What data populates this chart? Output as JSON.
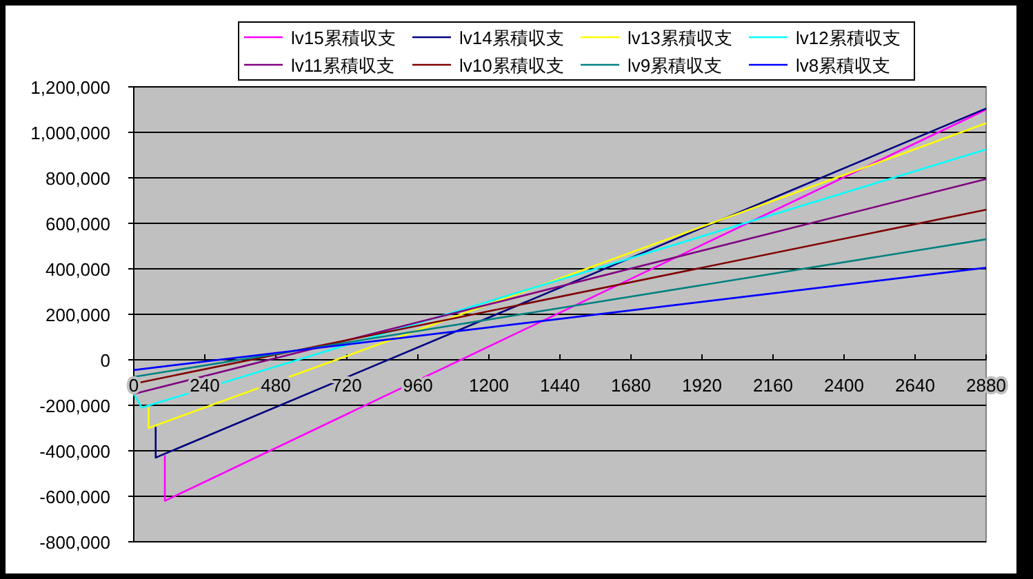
{
  "chart_data": {
    "type": "line",
    "legend": "top",
    "grid": "y",
    "line_style": "solid",
    "xlim": [
      0,
      2880
    ],
    "xticks": [
      0,
      240,
      480,
      720,
      960,
      1200,
      1440,
      1680,
      1920,
      2160,
      2400,
      2640,
      2880
    ],
    "ylim": [
      -800000,
      1200000
    ],
    "yticks": [
      {
        "value": -800000,
        "label": "-800,000"
      },
      {
        "value": -600000,
        "label": "-600,000"
      },
      {
        "value": -400000,
        "label": "-400,000"
      },
      {
        "value": -200000,
        "label": "-200,000"
      },
      {
        "value": 0,
        "label": "0"
      },
      {
        "value": 200000,
        "label": "200,000"
      },
      {
        "value": 400000,
        "label": "400,000"
      },
      {
        "value": 600000,
        "label": "600,000"
      },
      {
        "value": 800000,
        "label": "800,000"
      },
      {
        "value": 1000000,
        "label": "1,000,000"
      },
      {
        "value": 1200000,
        "label": "1,200,000"
      }
    ],
    "series": [
      {
        "name": "lv15累積収支",
        "color": "#ff00ff",
        "x": [
          105,
          105,
          2880
        ],
        "values": [
          -420000,
          -620000,
          1100000
        ]
      },
      {
        "name": "lv14累積収支",
        "color": "#000080",
        "x": [
          74,
          74,
          2880
        ],
        "values": [
          -295000,
          -430000,
          1105000
        ]
      },
      {
        "name": "lv13累積収支",
        "color": "#ffff00",
        "x": [
          50,
          50,
          2880
        ],
        "values": [
          -210000,
          -300000,
          1040000
        ]
      },
      {
        "name": "lv12累積収支",
        "color": "#00ffff",
        "x": [
          0,
          27,
          2880
        ],
        "values": [
          -150000,
          -210000,
          925000
        ]
      },
      {
        "name": "lv11累積収支",
        "color": "#800080",
        "x": [
          0,
          2880
        ],
        "values": [
          -150000,
          795000
        ]
      },
      {
        "name": "lv10累積収支",
        "color": "#800000",
        "x": [
          0,
          2880
        ],
        "values": [
          -105000,
          660000
        ]
      },
      {
        "name": "lv9累積収支",
        "color": "#008080",
        "x": [
          0,
          2880
        ],
        "values": [
          -75000,
          530000
        ]
      },
      {
        "name": "lv8累積収支",
        "color": "#0000ff",
        "x": [
          0,
          2880
        ],
        "values": [
          -45000,
          405000
        ]
      }
    ]
  }
}
